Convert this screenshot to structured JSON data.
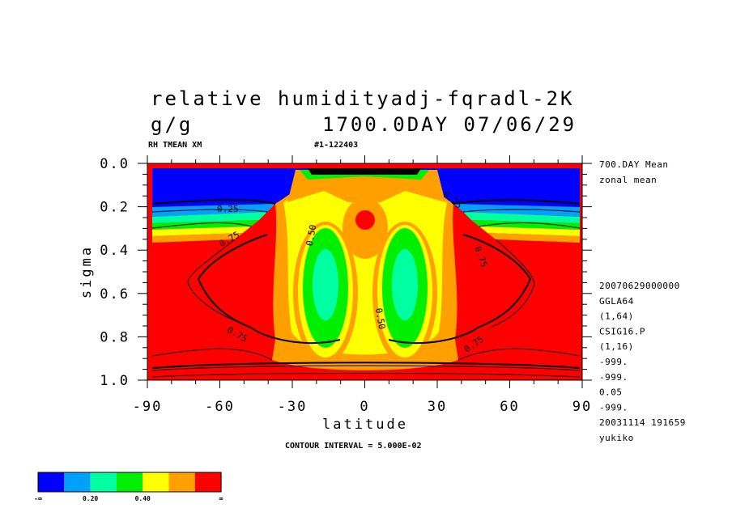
{
  "header": {
    "title_line1": "relative humidityadj-fqradl-2K",
    "units": "g/g",
    "date_line": "1700.0DAY 07/06/29",
    "var_label": "RH TMEAN XM",
    "run_id": "#1-122403"
  },
  "side_info": {
    "top": [
      "700.DAY Mean",
      "zonal mean"
    ],
    "meta": [
      "20070629000000",
      "GGLA64",
      "(1,64)",
      "CSIG16.P",
      "(1,16)",
      "-999.",
      "-999.",
      "0.05",
      "-999.",
      "20031114 191659",
      "yukiko"
    ]
  },
  "footer": {
    "contour_interval": "CONTOUR INTERVAL = 5.000E-02"
  },
  "chart_data": {
    "type": "contour",
    "variable": "relative humidity",
    "units": "g/g",
    "xlabel": "latitude",
    "ylabel": "sigma",
    "xlim": [
      -90,
      90
    ],
    "ylim": [
      1.0,
      0.0
    ],
    "x_ticks": [
      "-90",
      "-60",
      "-30",
      "0",
      "30",
      "60",
      "90"
    ],
    "y_ticks": [
      "0.0",
      "0.2",
      "0.4",
      "0.6",
      "0.8",
      "1.0"
    ],
    "contour_interval": 0.05,
    "contour_labels": [
      "0.50",
      "0.75",
      "0.75",
      "0.75",
      "0.75",
      "0.50",
      "0.25",
      "0.25"
    ],
    "colorbar": {
      "colors": [
        "#0000ff",
        "#00a0ff",
        "#00ffa0",
        "#00ee00",
        "#ffff00",
        "#ffa000",
        "#ff0000"
      ],
      "labels": [
        "-∞",
        "0.20",
        "0.40",
        "∞"
      ]
    }
  }
}
